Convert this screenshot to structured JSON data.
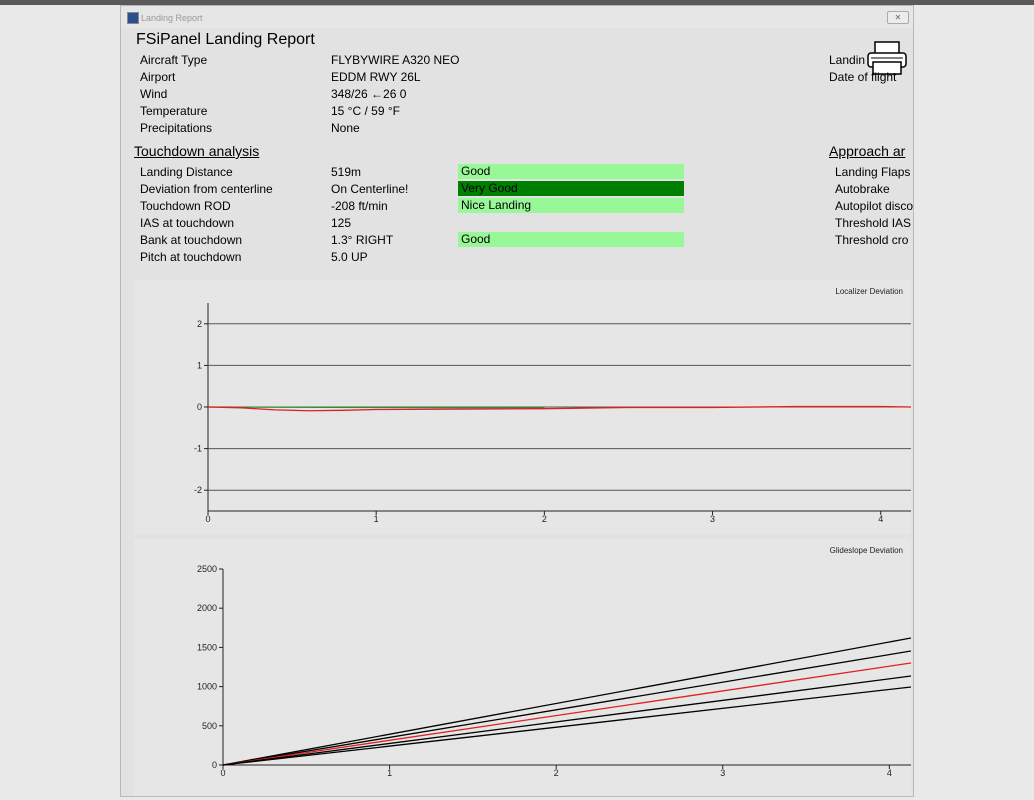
{
  "window": {
    "title": "Landing Report"
  },
  "header": {
    "title": "FSiPanel Landing Report"
  },
  "info": {
    "rows": [
      [
        "Aircraft Type",
        "FLYBYWIRE A320 NEO"
      ],
      [
        "Airport",
        "EDDM RWY 26L"
      ],
      [
        "Wind",
        "348/26  ←26  0"
      ],
      [
        "Temperature",
        "15 °C / 59 °F"
      ],
      [
        "Precipitations",
        "None"
      ]
    ]
  },
  "info_right": [
    "Landin",
    "Date of flight"
  ],
  "touchdown": {
    "heading": "Touchdown analysis",
    "rows": [
      {
        "label": "Landing Distance",
        "value": "519m",
        "rating": "Good",
        "color": "#98f898"
      },
      {
        "label": "Deviation from centerline",
        "value": "On Centerline!",
        "rating": "Very Good",
        "color": "#008000"
      },
      {
        "label": "Touchdown ROD",
        "value": "-208 ft/min",
        "rating": "Nice Landing",
        "color": "#98f898"
      },
      {
        "label": "IAS at touchdown",
        "value": "125"
      },
      {
        "label": "Bank at touchdown",
        "value": "1.3° RIGHT",
        "rating": "Good",
        "color": "#98f898"
      },
      {
        "label": "Pitch at touchdown",
        "value": "5.0 UP"
      }
    ]
  },
  "approach": {
    "heading": "Approach ar",
    "rows": [
      "Landing Flaps",
      "Autobrake",
      "Autopilot disco",
      "Threshold IAS",
      "Threshold cro"
    ]
  },
  "chart_data": [
    {
      "type": "line",
      "title": "Localizer Deviation",
      "xlim": [
        0,
        4.18
      ],
      "ylim": [
        -2.5,
        2.5
      ],
      "xticks": [
        0,
        1,
        2,
        3,
        4
      ],
      "yticks": [
        2,
        1,
        0,
        -1,
        -2
      ],
      "grid": true,
      "series": [
        {
          "color": "#2e8b2e",
          "x": [
            0,
            1,
            2
          ],
          "values": [
            0,
            -0.01,
            -0.02
          ]
        },
        {
          "color": "#e02020",
          "x": [
            0,
            0.2,
            0.4,
            0.6,
            0.8,
            1,
            1.5,
            2,
            2.5,
            3,
            3.5,
            4,
            4.18
          ],
          "values": [
            0,
            -0.02,
            -0.07,
            -0.09,
            -0.08,
            -0.06,
            -0.05,
            -0.04,
            -0.01,
            -0.01,
            0.01,
            0.01,
            0
          ]
        }
      ]
    },
    {
      "type": "line",
      "title": "Glideslope Deviation",
      "xlim": [
        0,
        4.13
      ],
      "ylim": [
        0,
        2500
      ],
      "xticks": [
        0,
        1,
        2,
        3,
        4
      ],
      "yticks": [
        0,
        500,
        1000,
        1500,
        2000,
        2500
      ],
      "grid": false,
      "series": [
        {
          "color": "#000000",
          "x": [
            0,
            4.13
          ],
          "values": [
            0,
            1620
          ]
        },
        {
          "color": "#000000",
          "x": [
            0,
            4.13
          ],
          "values": [
            0,
            1454
          ]
        },
        {
          "color": "#e02020",
          "x": [
            0,
            4.13
          ],
          "values": [
            0,
            1301
          ]
        },
        {
          "color": "#000000",
          "x": [
            0,
            4.13
          ],
          "values": [
            0,
            1135
          ]
        },
        {
          "color": "#000000",
          "x": [
            0,
            4.13
          ],
          "values": [
            0,
            995
          ]
        }
      ]
    }
  ]
}
